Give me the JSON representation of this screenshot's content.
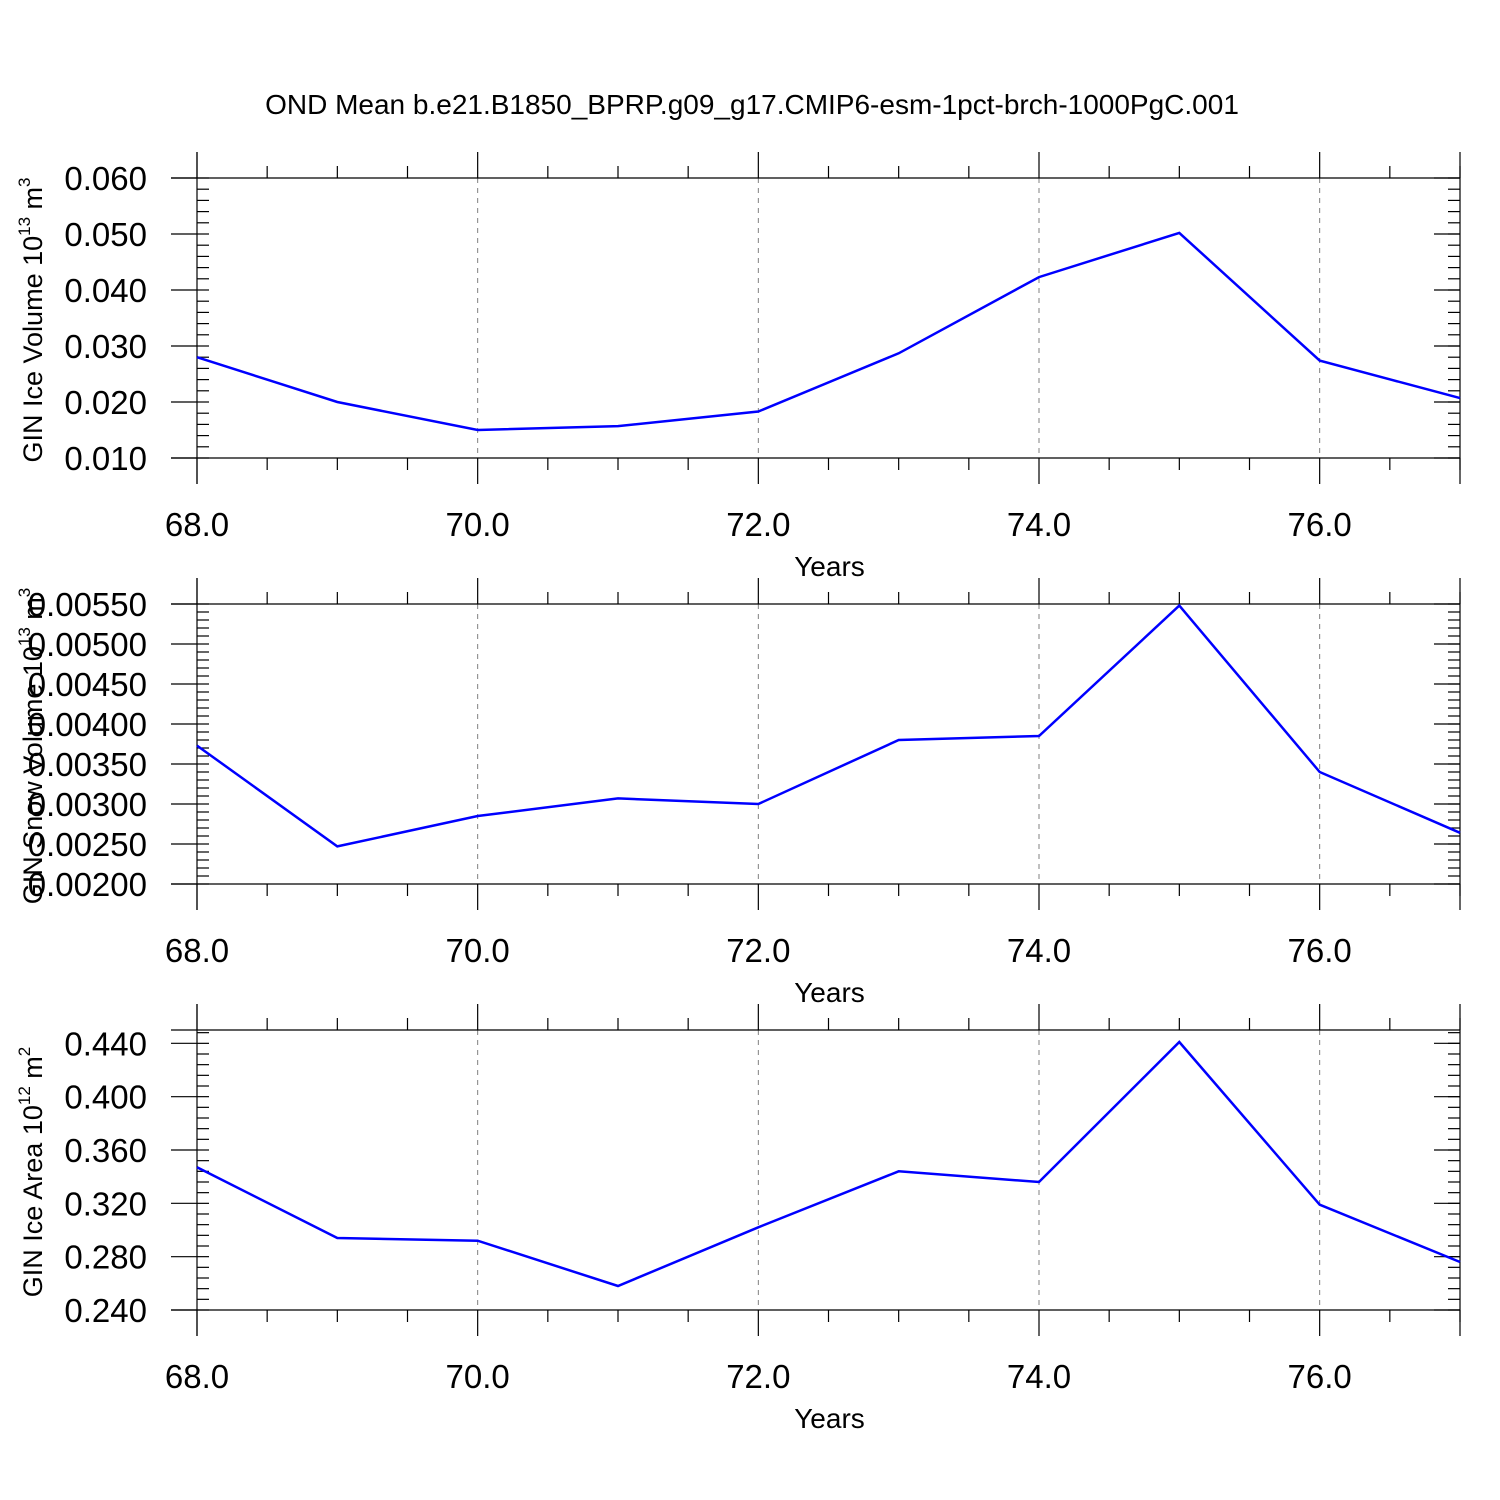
{
  "title": "OND Mean b.e21.B1850_BPRP.g09_g17.CMIP6-esm-1pct-brch-1000PgC.001",
  "colors": {
    "line": "#0000ff",
    "axis": "#000000",
    "grid": "#808080"
  },
  "chart_data": [
    {
      "type": "line",
      "xlabel": "Years",
      "ylabel": {
        "prefix": "GIN Ice Volume 10",
        "exp": "13",
        "unit": " m",
        "unit_exp": "3"
      },
      "xlim": [
        68,
        77
      ],
      "ylim": [
        0.01,
        0.06
      ],
      "xticks": [
        68,
        70,
        72,
        74,
        76
      ],
      "xtick_labels": [
        "68.0",
        "70.0",
        "72.0",
        "74.0",
        "76.0"
      ],
      "yticks": [
        0.01,
        0.02,
        0.03,
        0.04,
        0.05,
        0.06
      ],
      "ytick_labels": [
        "0.010",
        "0.020",
        "0.030",
        "0.040",
        "0.050",
        "0.060"
      ],
      "grid": "x-dashed",
      "x": [
        68,
        69,
        70,
        71,
        72,
        73,
        74,
        75,
        76,
        77
      ],
      "values": [
        0.028,
        0.02,
        0.015,
        0.0157,
        0.0183,
        0.0287,
        0.0423,
        0.0502,
        0.0274,
        0.0207
      ]
    },
    {
      "type": "line",
      "xlabel": "Years",
      "ylabel": {
        "prefix": "GIN Snow Volume 10",
        "exp": "13",
        "unit": " m",
        "unit_exp": "3"
      },
      "xlim": [
        68,
        77
      ],
      "ylim": [
        0.002,
        0.0055
      ],
      "xticks": [
        68,
        70,
        72,
        74,
        76
      ],
      "xtick_labels": [
        "68.0",
        "70.0",
        "72.0",
        "74.0",
        "76.0"
      ],
      "yticks": [
        0.002,
        0.0025,
        0.003,
        0.0035,
        0.004,
        0.0045,
        0.005,
        0.0055
      ],
      "ytick_labels": [
        "0.00200",
        "0.00250",
        "0.00300",
        "0.00350",
        "0.00400",
        "0.00450",
        "0.00500",
        "0.00550"
      ],
      "grid": "x-dashed",
      "x": [
        68,
        69,
        70,
        71,
        72,
        73,
        74,
        75,
        76,
        77
      ],
      "values": [
        0.00373,
        0.00247,
        0.00285,
        0.00307,
        0.003,
        0.0038,
        0.00385,
        0.00548,
        0.0034,
        0.00264
      ]
    },
    {
      "type": "line",
      "xlabel": "Years",
      "ylabel": {
        "prefix": "GIN Ice Area 10",
        "exp": "12",
        "unit": " m",
        "unit_exp": "2"
      },
      "xlim": [
        68,
        77
      ],
      "ylim": [
        0.24,
        0.45
      ],
      "xticks": [
        68,
        70,
        72,
        74,
        76
      ],
      "xtick_labels": [
        "68.0",
        "70.0",
        "72.0",
        "74.0",
        "76.0"
      ],
      "yticks": [
        0.24,
        0.28,
        0.32,
        0.36,
        0.4,
        0.44
      ],
      "ytick_labels": [
        "0.240",
        "0.280",
        "0.320",
        "0.360",
        "0.400",
        "0.440"
      ],
      "grid": "x-dashed",
      "x": [
        68,
        69,
        70,
        71,
        72,
        73,
        74,
        75,
        76,
        77
      ],
      "values": [
        0.347,
        0.294,
        0.292,
        0.258,
        0.302,
        0.344,
        0.336,
        0.441,
        0.319,
        0.276
      ]
    }
  ]
}
